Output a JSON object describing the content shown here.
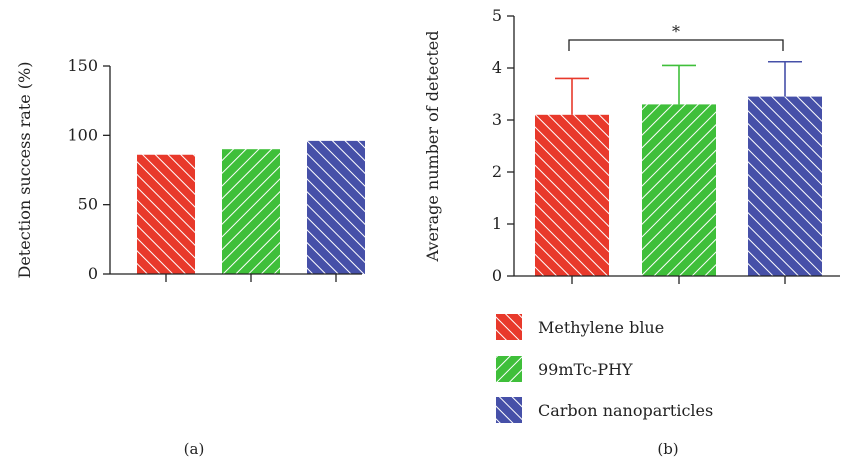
{
  "chart_data": [
    {
      "type": "bar",
      "panel_label": "(a)",
      "categories": [
        "Methylene blue",
        "99mTc-PHY",
        "Carbon nanoparticles"
      ],
      "values": [
        86,
        90,
        96
      ],
      "ylabel": "Detection success rate (%)",
      "xlabel": "",
      "ylim": [
        0,
        150
      ],
      "yticks": [
        0,
        50,
        100,
        150
      ],
      "grid": false
    },
    {
      "type": "bar",
      "panel_label": "(b)",
      "categories": [
        "Methylene blue",
        "99mTc-PHY",
        "Carbon nanoparticles"
      ],
      "values": [
        3.1,
        3.3,
        3.45
      ],
      "errors": [
        0.7,
        0.75,
        0.67
      ],
      "ylabel": "Average number of detected",
      "xlabel": "",
      "ylim": [
        0,
        5
      ],
      "yticks": [
        0,
        1,
        2,
        3,
        4,
        5
      ],
      "grid": false,
      "annotation": {
        "text": "*",
        "between": [
          "Methylene blue",
          "Carbon nanoparticles"
        ]
      }
    }
  ],
  "legend": {
    "placement": "below panel (b)",
    "items": [
      {
        "label": "Methylene blue",
        "color": "#e8392b",
        "hatch": "backslash"
      },
      {
        "label": "99mTc-PHY",
        "color": "#3fbf3a",
        "hatch": "slash"
      },
      {
        "label": "Carbon nanoparticles",
        "color": "#4650a8",
        "hatch": "backslash"
      }
    ]
  },
  "colors": {
    "methylene_blue": "#e8392b",
    "tc_phy": "#3fbf3a",
    "carbon": "#4650a8"
  }
}
